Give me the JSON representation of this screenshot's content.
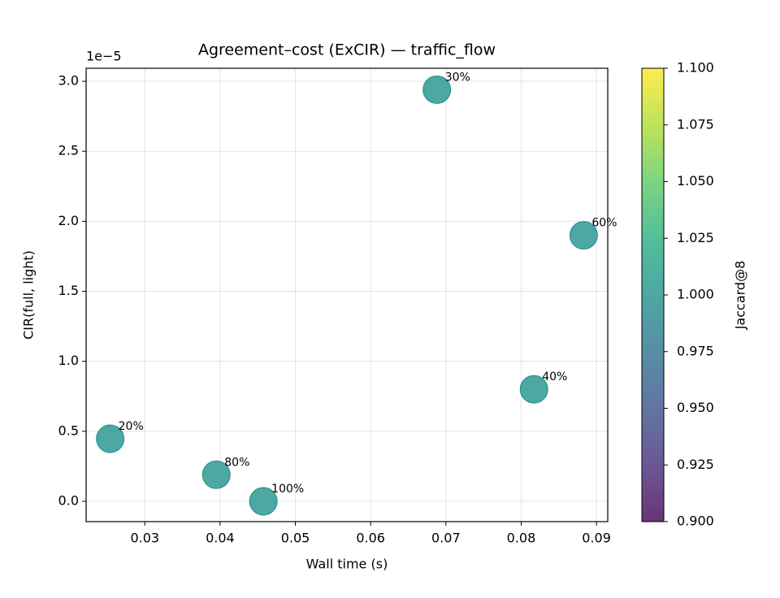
{
  "chart_data": {
    "type": "scatter",
    "title": "Agreement–cost (ExCIR) — traffic_flow",
    "x_label": "Wall time (s)",
    "y_label": "CIR(full, light)",
    "y_offset_label": "1e−5",
    "x": [
      0.0254,
      0.0688,
      0.0817,
      0.0883,
      0.0395,
      0.04575
    ],
    "values": [
      0.447,
      2.94,
      0.8,
      1.9,
      0.19,
      0.0
    ],
    "point_labels": [
      "20%",
      "30%",
      "40%",
      "60%",
      "80%",
      "100%"
    ],
    "jaccard": [
      1.0,
      1.0,
      1.0,
      1.0,
      1.0,
      1.0
    ],
    "alpha": 0.8,
    "xlim": [
      0.0222,
      0.0915
    ],
    "ylim": [
      -0.145,
      3.093
    ],
    "xticks": [
      0.03,
      0.04,
      0.05,
      0.06,
      0.07,
      0.08,
      0.09
    ],
    "yticks": [
      {
        "value": 0,
        "label": "0.0"
      },
      0.5,
      {
        "value": 1,
        "label": "1.0"
      },
      1.5,
      {
        "value": 2,
        "label": "2.0"
      },
      2.5,
      {
        "value": 3,
        "label": "3.0"
      }
    ],
    "grid": true,
    "colorbar": {
      "label": "Jaccard@8",
      "colormap": "viridis",
      "lim": [
        0.9,
        1.1
      ],
      "ticks": [
        {
          "value": 0.9,
          "label": "0.900"
        },
        0.925,
        {
          "value": 0.95,
          "label": "0.950"
        },
        0.975,
        {
          "value": 1,
          "label": "1.000"
        },
        1.025,
        {
          "value": 1.05,
          "label": "1.050"
        },
        1.075,
        {
          "value": 1.1,
          "label": "1.100"
        }
      ]
    }
  }
}
